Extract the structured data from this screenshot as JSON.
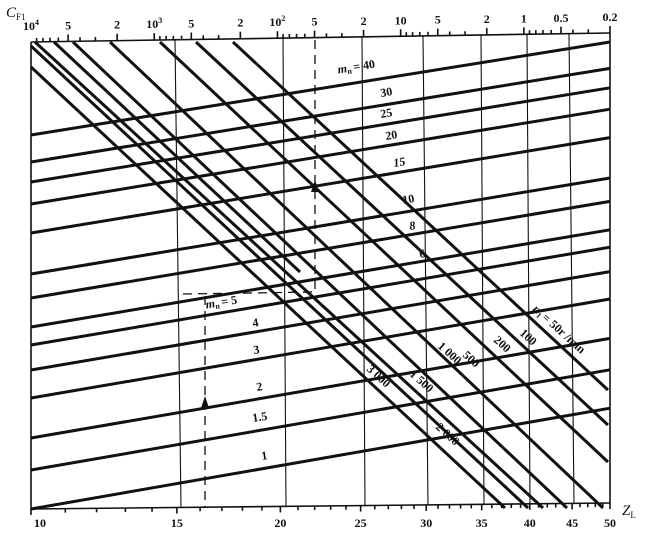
{
  "chart_data": {
    "type": "line",
    "kind": "nomogram",
    "title": "",
    "x_axis": {
      "label": "Z",
      "label_sub": "L",
      "scale": "log",
      "range": [
        10,
        50
      ],
      "ticks": [
        10,
        15,
        20,
        25,
        30,
        35,
        40,
        45,
        50
      ],
      "tick_labels": [
        "10",
        "15",
        "20",
        "25",
        "30",
        "35",
        "40",
        "45",
        "50"
      ]
    },
    "top_axis": {
      "label": "C",
      "label_sub": "F1",
      "scale": "log",
      "direction": "decreasing",
      "range": [
        10000,
        0.2
      ],
      "tick_labels": [
        {
          "value": 10000,
          "base": "10",
          "exp": "4"
        },
        {
          "value": 5000,
          "base": "5",
          "exp": ""
        },
        {
          "value": 2000,
          "base": "2",
          "exp": ""
        },
        {
          "value": 1000,
          "base": "10",
          "exp": "3"
        },
        {
          "value": 500,
          "base": "5",
          "exp": ""
        },
        {
          "value": 200,
          "base": "2",
          "exp": ""
        },
        {
          "value": 100,
          "base": "10",
          "exp": "2"
        },
        {
          "value": 50,
          "base": "5",
          "exp": ""
        },
        {
          "value": 20,
          "base": "2",
          "exp": ""
        },
        {
          "value": 10,
          "base": "10",
          "exp": ""
        },
        {
          "value": 5,
          "base": "5",
          "exp": ""
        },
        {
          "value": 2,
          "base": "2",
          "exp": ""
        },
        {
          "value": 1,
          "base": "1",
          "exp": ""
        },
        {
          "value": 0.5,
          "base": "0.5",
          "exp": ""
        },
        {
          "value": 0.2,
          "base": "0.2",
          "exp": ""
        }
      ]
    },
    "module_lines": {
      "parameter": "m_n",
      "values": [
        40,
        30,
        25,
        20,
        15,
        10,
        8,
        6,
        5,
        4,
        3,
        2,
        1.5,
        1
      ],
      "labels": [
        "= 40",
        "30",
        "25",
        "20",
        "15",
        "10",
        "8",
        "6",
        "= 5",
        "4",
        "3",
        "2",
        "1.5",
        "1"
      ],
      "symbol": "m",
      "symbol_sub": "n"
    },
    "speed_lines": {
      "parameter": "n_1",
      "unit": "r/min",
      "values": [
        3000,
        2000,
        1500,
        1000,
        500,
        200,
        100,
        50
      ],
      "labels": [
        "3 000",
        "2 000",
        "1 500",
        "1 000",
        "500",
        "200",
        "100",
        "= 50r /min"
      ],
      "symbol": "n",
      "symbol_sub": "1"
    },
    "example_paths": "dashed",
    "grid": true,
    "colors": {
      "ink": "#111111",
      "background": "#ffffff"
    }
  }
}
